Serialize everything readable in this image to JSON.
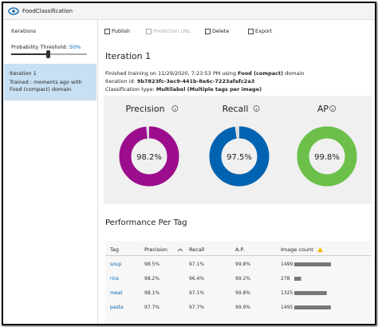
{
  "header": {
    "title": "FoodClassification"
  },
  "sidebar": {
    "heading": "Iterations",
    "threshold_label": "Probability Threshold:",
    "threshold_value": "50%",
    "items": [
      {
        "name": "Iteration 1",
        "detail": "Trained : moments ago with Food (compact) domain"
      }
    ]
  },
  "toolbar": [
    "Publish",
    "Prediction URL",
    "Delete",
    "Export"
  ],
  "iteration": {
    "title": "Iteration 1",
    "lines": [
      [
        "Finished training on 11/29/2020, 7:23:53 PM using ",
        "Food (compact)",
        " domain"
      ],
      [
        "Iteration id: ",
        "9b7823fc-3ec9-441b-8e6c-7223afefc2a3"
      ],
      [
        "Classification type: ",
        "Multilabel (Multiple tags per image)"
      ]
    ]
  },
  "metrics": [
    {
      "name": "Precision",
      "value": 98.2,
      "label": "98.2%",
      "color": "#9c0d8d"
    },
    {
      "name": "Recall",
      "value": 97.5,
      "label": "97.5%",
      "color": "#0063b1"
    },
    {
      "name": "AP",
      "value": 99.8,
      "label": "99.8%",
      "color": "#6cc04a"
    }
  ],
  "performance": {
    "title": "Performance Per Tag",
    "columns": [
      "Tag",
      "Precision",
      "Recall",
      "A.P.",
      "Image count"
    ],
    "rows": [
      [
        "soup",
        "98.5%",
        "97.1%",
        "99.8%",
        1499
      ],
      [
        "rice",
        "98.2%",
        "96.4%",
        "99.2%",
        278
      ],
      [
        "meat",
        "98.1%",
        "97.1%",
        "99.8%",
        1325
      ],
      [
        "pasta",
        "97.7%",
        "97.7%",
        "99.9%",
        1495
      ]
    ]
  }
}
